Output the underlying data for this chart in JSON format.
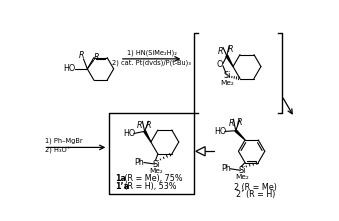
{
  "bg_color": "#ffffff",
  "fig_width": 3.39,
  "fig_height": 2.21,
  "dpi": 100,
  "step1_line1": "1) HN(SiMe₂H)₂",
  "step1_line2": "2) cat. Pt(dvds)/P(t-Bu)₃",
  "step2_line1": "1) Ph–MgBr",
  "step2_line2": "2) H₃O⁺",
  "label1a": "1a (R = Me), 75%",
  "label1pa": "1’a (R = H), 53%",
  "label2": "2 (R = Me)",
  "label2p": "2’ (R = H)",
  "bold1a": "1a",
  "bold1pa": "1’a",
  "bold2": "2",
  "bold2p": "2’"
}
